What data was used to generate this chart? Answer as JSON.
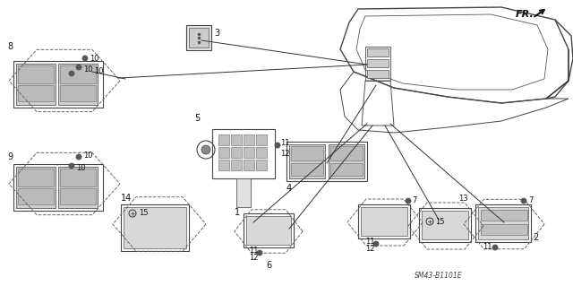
{
  "bg_color": "#ffffff",
  "fig_width": 6.4,
  "fig_height": 3.19,
  "dpi": 100,
  "part_label": "SM43-B1101E",
  "line_color": "#333333",
  "dark": "#111111"
}
